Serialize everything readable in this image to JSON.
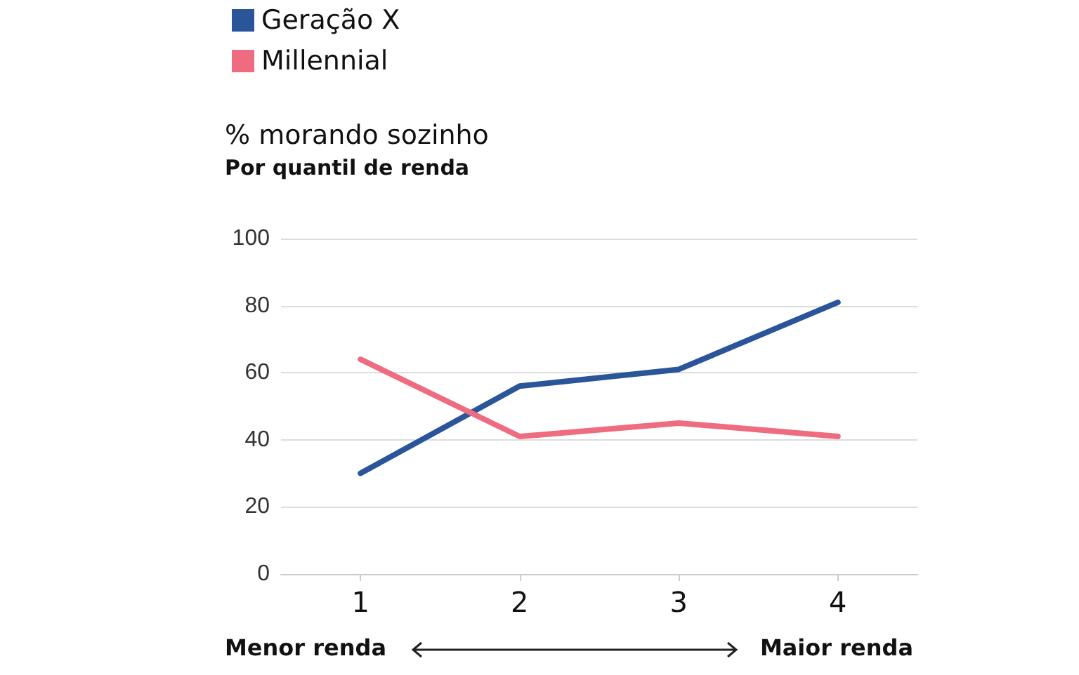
{
  "chart_data": {
    "type": "line",
    "title": "% morando sozinho",
    "subtitle": "Por quantil de renda",
    "categories": [
      "1",
      "2",
      "3",
      "4"
    ],
    "series": [
      {
        "name": "Geração X",
        "color": "#2a5599",
        "values": [
          30,
          56,
          61,
          81
        ]
      },
      {
        "name": "Millennial",
        "color": "#ef6b80",
        "values": [
          64,
          41,
          45,
          41
        ]
      }
    ],
    "ylim": [
      0,
      100
    ],
    "yticks": [
      0,
      20,
      40,
      60,
      80,
      100
    ],
    "grid": "y",
    "legend": "top left",
    "marker": "none",
    "annotations": [
      "Menor renda",
      "Maior renda"
    ]
  }
}
